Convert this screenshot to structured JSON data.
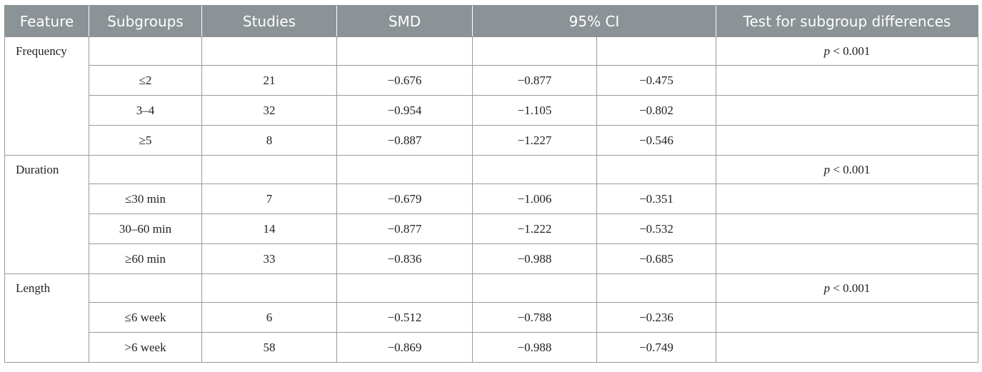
{
  "headers": {
    "feature": "Feature",
    "subgroups": "Subgroups",
    "studies": "Studies",
    "smd": "SMD",
    "ci": "95% CI",
    "test": "Test for subgroup differences"
  },
  "groups": [
    {
      "feature": "Frequency",
      "p_symbol": "p",
      "p_rest": " < 0.001",
      "rows": [
        {
          "subgroup": "≤2",
          "studies": "21",
          "smd": "−0.676",
          "ci_low": "−0.877",
          "ci_high": "−0.475"
        },
        {
          "subgroup": "3–4",
          "studies": "32",
          "smd": "−0.954",
          "ci_low": "−1.105",
          "ci_high": "−0.802"
        },
        {
          "subgroup": "≥5",
          "studies": "8",
          "smd": "−0.887",
          "ci_low": "−1.227",
          "ci_high": "−0.546"
        }
      ]
    },
    {
      "feature": "Duration",
      "p_symbol": "p",
      "p_rest": " < 0.001",
      "rows": [
        {
          "subgroup": "≤30 min",
          "studies": "7",
          "smd": "−0.679",
          "ci_low": "−1.006",
          "ci_high": "−0.351"
        },
        {
          "subgroup": "30–60 min",
          "studies": "14",
          "smd": "−0.877",
          "ci_low": "−1.222",
          "ci_high": "−0.532"
        },
        {
          "subgroup": "≥60 min",
          "studies": "33",
          "smd": "−0.836",
          "ci_low": "−0.988",
          "ci_high": "−0.685"
        }
      ]
    },
    {
      "feature": "Length",
      "p_symbol": "p",
      "p_rest": " < 0.001",
      "rows": [
        {
          "subgroup": "≤6 week",
          "studies": "6",
          "smd": "−0.512",
          "ci_low": "−0.788",
          "ci_high": "−0.236"
        },
        {
          "subgroup": ">6 week",
          "studies": "58",
          "smd": "−0.869",
          "ci_low": "−0.988",
          "ci_high": "−0.749"
        }
      ]
    }
  ],
  "colors": {
    "header_bg": "#8c9396",
    "header_text": "#ffffff",
    "border": "#9a9a9a"
  }
}
